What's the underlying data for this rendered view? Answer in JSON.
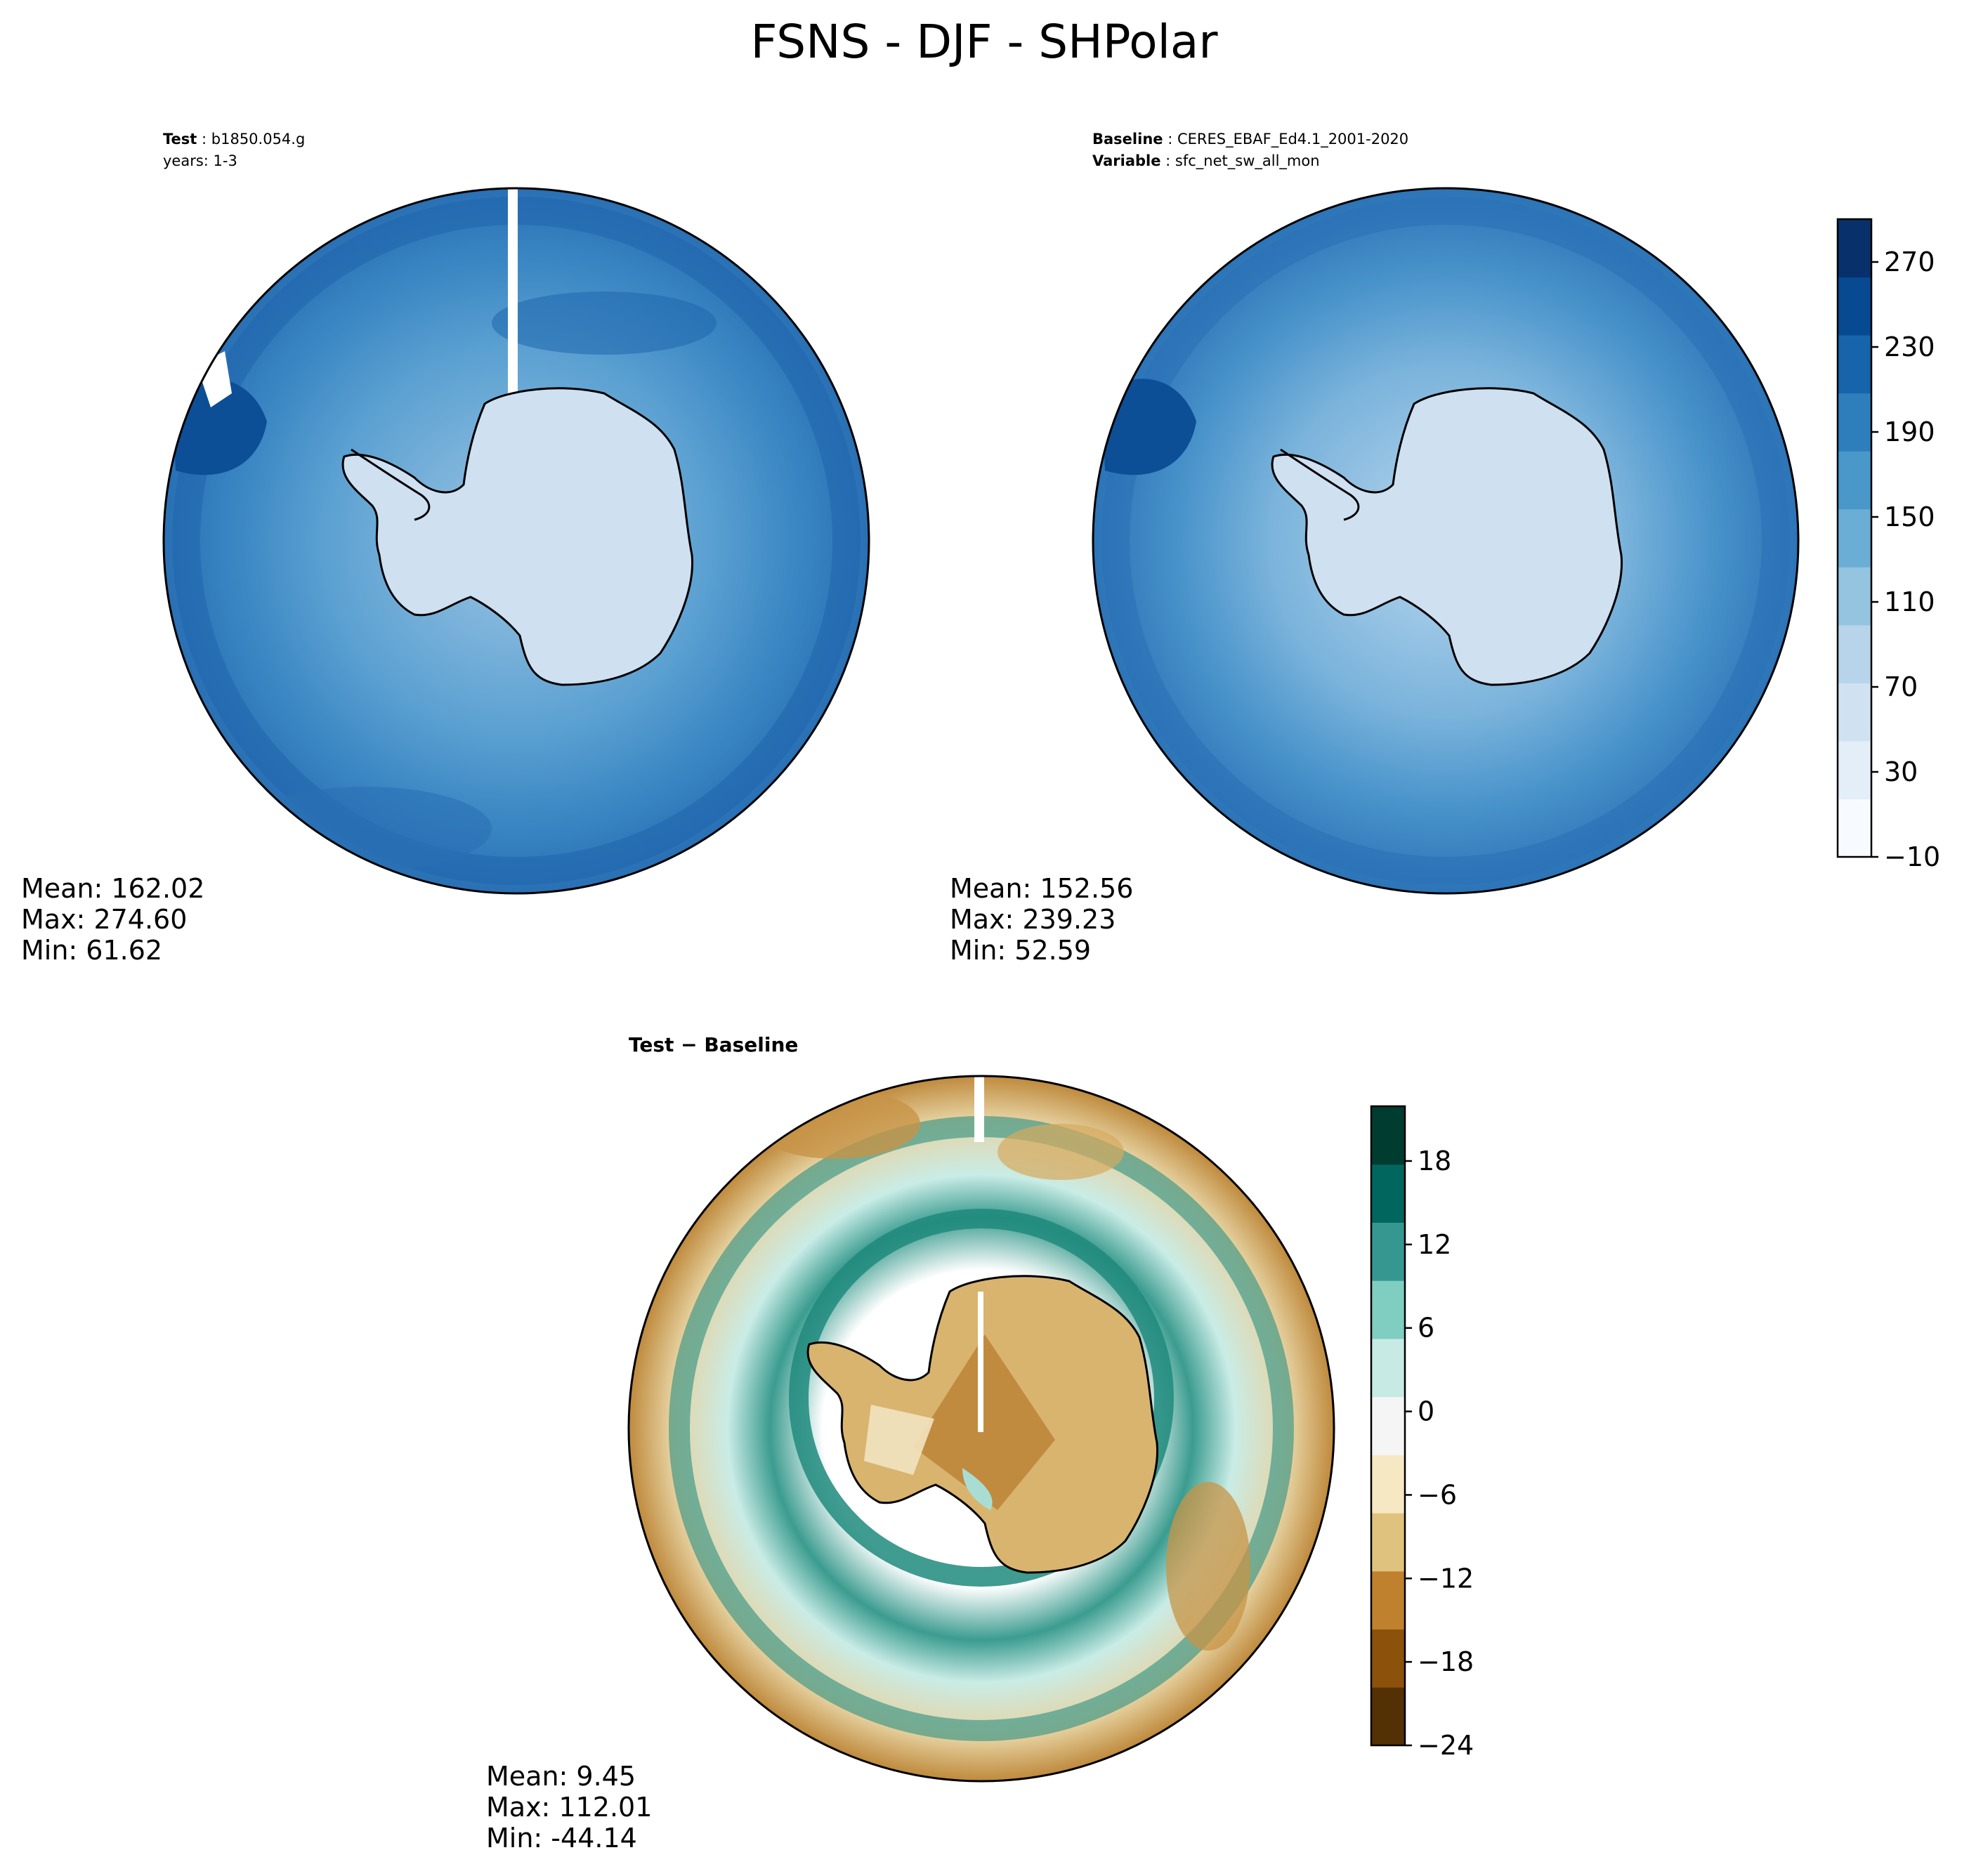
{
  "title": "FSNS - DJF - SHPolar",
  "test_panel": {
    "label_bold": "Test",
    "label_value": "b1850.054.g",
    "years": "years: 1-3",
    "stats": {
      "mean": "Mean: 162.02",
      "max": "Max: 274.60",
      "min": "Min: 61.62"
    }
  },
  "baseline_panel": {
    "label_bold": "Baseline",
    "label_value": "CERES_EBAF_Ed4.1_2001-2020",
    "variable_bold": "Variable",
    "variable_value": "sfc_net_sw_all_mon",
    "stats": {
      "mean": "Mean: 152.56",
      "max": "Max: 239.23",
      "min": "Min: 52.59"
    }
  },
  "diff_panel": {
    "title": "Test − Baseline",
    "stats": {
      "mean": "Mean:  9.45",
      "max": "Max: 112.01",
      "min": "Min: -44.14"
    }
  },
  "colorbar_main": {
    "ticks": [
      "270",
      "230",
      "190",
      "150",
      "110",
      "70",
      "30",
      "−10"
    ],
    "colors": [
      "#f7fbff",
      "#e3eef9",
      "#d0e1f2",
      "#b7d4ea",
      "#94c4df",
      "#6aaed6",
      "#4a98c9",
      "#2e7ebc",
      "#1764ab",
      "#084a91",
      "#08306b"
    ]
  },
  "colorbar_diff": {
    "ticks": [
      "18",
      "12",
      "6",
      "0",
      "−6",
      "−12",
      "−18",
      "−24"
    ],
    "colors": [
      "#543005",
      "#8c510a",
      "#bf812d",
      "#dfc27d",
      "#f6e8c3",
      "#f5f5f5",
      "#c7eae5",
      "#80cdc1",
      "#35978f",
      "#01665e",
      "#003c30"
    ]
  },
  "map_colors": {
    "ocean_deep": "#2a73b7",
    "ocean_mid": "#3f8cc6",
    "ocean_light": "#5ea2d2",
    "ice": "#cfe0f1",
    "peninsula": "#0d4f96",
    "diff_green": "#2a8f82",
    "diff_teal_light": "#a8ddd2",
    "diff_brown": "#c79447",
    "diff_tan": "#e9d4a3"
  }
}
